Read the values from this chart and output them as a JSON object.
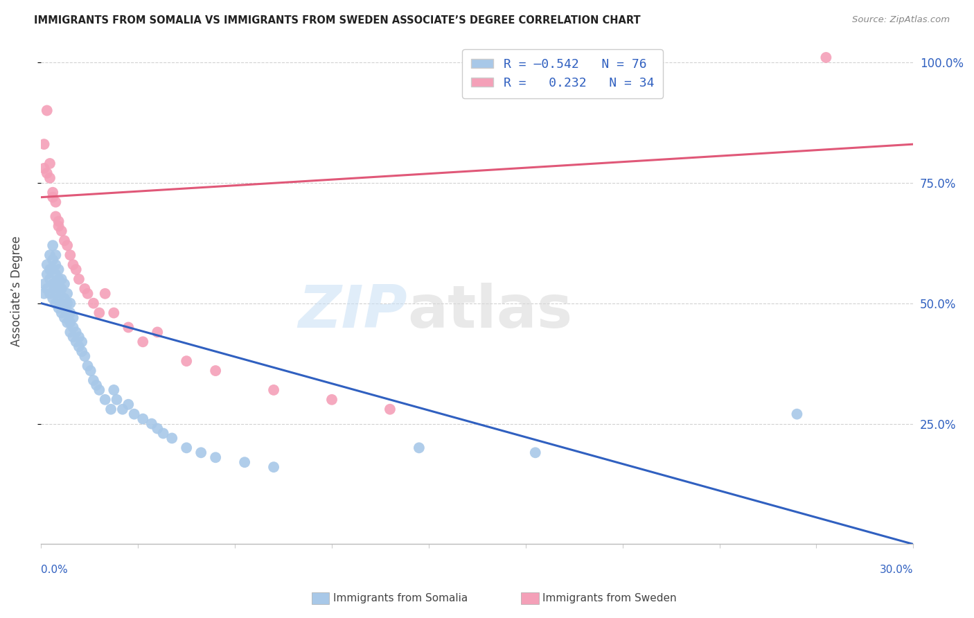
{
  "title": "IMMIGRANTS FROM SOMALIA VS IMMIGRANTS FROM SWEDEN ASSOCIATE’S DEGREE CORRELATION CHART",
  "source": "Source: ZipAtlas.com",
  "ylabel": "Associate’s Degree",
  "watermark_zip": "ZIP",
  "watermark_atlas": "atlas",
  "somalia_color": "#a8c8e8",
  "sweden_color": "#f4a0b8",
  "somalia_line_color": "#3060c0",
  "sweden_line_color": "#e05878",
  "background_color": "#ffffff",
  "grid_color": "#cccccc",
  "xlim": [
    0.0,
    0.3
  ],
  "ylim": [
    0.0,
    1.05
  ],
  "somalia_R": -0.542,
  "somalia_N": 76,
  "sweden_R": 0.232,
  "sweden_N": 34,
  "somalia_line_x0": 0.0,
  "somalia_line_y0": 0.5,
  "somalia_line_x1": 0.3,
  "somalia_line_y1": 0.0,
  "sweden_line_x0": 0.0,
  "sweden_line_y0": 0.72,
  "sweden_line_x1": 0.3,
  "sweden_line_y1": 0.83,
  "somalia_x": [
    0.001,
    0.001,
    0.002,
    0.002,
    0.002,
    0.003,
    0.003,
    0.003,
    0.003,
    0.004,
    0.004,
    0.004,
    0.004,
    0.004,
    0.005,
    0.005,
    0.005,
    0.005,
    0.005,
    0.005,
    0.006,
    0.006,
    0.006,
    0.006,
    0.006,
    0.007,
    0.007,
    0.007,
    0.007,
    0.008,
    0.008,
    0.008,
    0.008,
    0.009,
    0.009,
    0.009,
    0.009,
    0.01,
    0.01,
    0.01,
    0.01,
    0.011,
    0.011,
    0.011,
    0.012,
    0.012,
    0.013,
    0.013,
    0.014,
    0.014,
    0.015,
    0.016,
    0.017,
    0.018,
    0.019,
    0.02,
    0.022,
    0.024,
    0.025,
    0.026,
    0.028,
    0.03,
    0.032,
    0.035,
    0.038,
    0.04,
    0.042,
    0.045,
    0.05,
    0.055,
    0.06,
    0.07,
    0.08,
    0.13,
    0.17,
    0.26
  ],
  "somalia_y": [
    0.52,
    0.54,
    0.53,
    0.56,
    0.58,
    0.55,
    0.57,
    0.6,
    0.52,
    0.51,
    0.54,
    0.57,
    0.59,
    0.62,
    0.5,
    0.52,
    0.54,
    0.56,
    0.58,
    0.6,
    0.49,
    0.51,
    0.53,
    0.55,
    0.57,
    0.48,
    0.5,
    0.53,
    0.55,
    0.47,
    0.49,
    0.51,
    0.54,
    0.46,
    0.48,
    0.5,
    0.52,
    0.44,
    0.46,
    0.48,
    0.5,
    0.43,
    0.45,
    0.47,
    0.42,
    0.44,
    0.41,
    0.43,
    0.4,
    0.42,
    0.39,
    0.37,
    0.36,
    0.34,
    0.33,
    0.32,
    0.3,
    0.28,
    0.32,
    0.3,
    0.28,
    0.29,
    0.27,
    0.26,
    0.25,
    0.24,
    0.23,
    0.22,
    0.2,
    0.19,
    0.18,
    0.17,
    0.16,
    0.2,
    0.19,
    0.27
  ],
  "sweden_x": [
    0.001,
    0.001,
    0.002,
    0.002,
    0.003,
    0.003,
    0.004,
    0.004,
    0.005,
    0.005,
    0.006,
    0.006,
    0.007,
    0.008,
    0.009,
    0.01,
    0.011,
    0.012,
    0.013,
    0.015,
    0.016,
    0.018,
    0.02,
    0.022,
    0.025,
    0.03,
    0.035,
    0.04,
    0.05,
    0.06,
    0.08,
    0.1,
    0.12,
    0.27
  ],
  "sweden_y": [
    0.78,
    0.83,
    0.77,
    0.9,
    0.79,
    0.76,
    0.73,
    0.72,
    0.71,
    0.68,
    0.67,
    0.66,
    0.65,
    0.63,
    0.62,
    0.6,
    0.58,
    0.57,
    0.55,
    0.53,
    0.52,
    0.5,
    0.48,
    0.52,
    0.48,
    0.45,
    0.42,
    0.44,
    0.38,
    0.36,
    0.32,
    0.3,
    0.28,
    1.01
  ]
}
